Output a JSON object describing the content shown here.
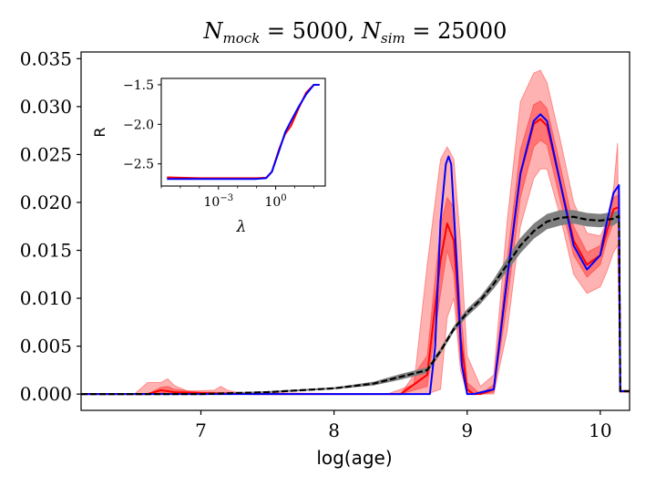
{
  "chart_data": {
    "type": "line",
    "title": "N_mock = 5000, N_sim = 25000",
    "title_parts": {
      "n": "N",
      "mock": "mock",
      "eq1": " = 5000, ",
      "sim": "sim",
      "eq2": " = 25000"
    },
    "xlabel": "log(age)",
    "ylabel": "",
    "xlim": [
      6.1,
      10.22
    ],
    "ylim": [
      -0.0017,
      0.0357
    ],
    "x_ticks": [
      7,
      8,
      9,
      10
    ],
    "x_tick_labels": [
      "7",
      "8",
      "9",
      "10"
    ],
    "y_ticks": [
      0.0,
      0.005,
      0.01,
      0.015,
      0.02,
      0.025,
      0.03,
      0.035
    ],
    "y_tick_labels": [
      "0.000",
      "0.005",
      "0.010",
      "0.015",
      "0.020",
      "0.025",
      "0.030",
      "0.035"
    ],
    "colors": {
      "red": "#ff0000",
      "band": "#ff0000",
      "blue": "#0000ff",
      "gray": "#808080",
      "black": "#000000"
    },
    "series": [
      {
        "name": "red-median",
        "color": "#ff0000",
        "x": [
          6.1,
          6.6,
          6.7,
          6.8,
          7.0,
          7.4,
          8.0,
          8.5,
          8.7,
          8.8,
          8.85,
          8.9,
          8.95,
          9.0,
          9.05,
          9.1,
          9.2,
          9.3,
          9.4,
          9.5,
          9.55,
          9.6,
          9.7,
          9.8,
          9.9,
          10.0,
          10.05,
          10.1,
          10.14,
          10.15,
          10.22
        ],
        "values": [
          0,
          0,
          0.0004,
          0.0002,
          0.0001,
          0,
          0,
          0,
          0.002,
          0.014,
          0.0178,
          0.016,
          0.006,
          0.0005,
          0,
          0,
          0.0005,
          0.012,
          0.023,
          0.0282,
          0.0287,
          0.028,
          0.022,
          0.016,
          0.0135,
          0.0145,
          0.017,
          0.0193,
          0.0195,
          0.0003,
          0.0003
        ]
      },
      {
        "name": "blue-truth",
        "color": "#0000ff",
        "x": [
          6.1,
          8.72,
          8.76,
          8.8,
          8.84,
          8.86,
          8.88,
          8.92,
          8.96,
          9.0,
          9.05,
          9.2,
          9.3,
          9.4,
          9.5,
          9.55,
          9.6,
          9.7,
          9.8,
          9.9,
          10.0,
          10.05,
          10.1,
          10.14,
          10.15,
          10.22
        ],
        "values": [
          0,
          0,
          0.005,
          0.018,
          0.024,
          0.0248,
          0.024,
          0.014,
          0.003,
          0,
          0,
          0.0005,
          0.012,
          0.023,
          0.0285,
          0.0292,
          0.0285,
          0.022,
          0.0155,
          0.013,
          0.0145,
          0.018,
          0.021,
          0.0218,
          0.0003,
          0.0003
        ]
      },
      {
        "name": "black-dashed",
        "color": "#000000",
        "x": [
          6.1,
          7.0,
          7.5,
          8.0,
          8.3,
          8.5,
          8.7,
          8.8,
          8.9,
          9.0,
          9.1,
          9.2,
          9.3,
          9.4,
          9.5,
          9.6,
          9.7,
          9.8,
          9.9,
          10.0,
          10.1,
          10.14,
          10.15,
          10.22
        ],
        "values": [
          0,
          0,
          0.0002,
          0.0006,
          0.0011,
          0.0018,
          0.0025,
          0.0045,
          0.0068,
          0.0085,
          0.0098,
          0.0115,
          0.0135,
          0.0155,
          0.017,
          0.018,
          0.0184,
          0.0185,
          0.0182,
          0.0181,
          0.0183,
          0.0186,
          0.0003,
          0.0003
        ]
      }
    ],
    "bands": [
      {
        "name": "red-outer-band",
        "opacity": 0.3,
        "x": [
          6.1,
          6.5,
          6.6,
          6.7,
          6.75,
          6.8,
          6.9,
          7.1,
          7.15,
          7.2,
          7.3,
          8.4,
          8.6,
          8.7,
          8.8,
          8.85,
          8.9,
          8.95,
          9.0,
          9.1,
          9.2,
          9.3,
          9.4,
          9.5,
          9.55,
          9.6,
          9.7,
          9.8,
          9.9,
          10.0,
          10.05,
          10.1,
          10.13,
          10.15,
          10.22
        ],
        "upper": [
          0,
          0,
          0.0012,
          0.0012,
          0.0016,
          0.0009,
          0.0003,
          0.0004,
          0.0008,
          0.0004,
          0.0001,
          0,
          0.001,
          0.0135,
          0.0245,
          0.0258,
          0.0245,
          0.016,
          0.004,
          0.0008,
          0.002,
          0.018,
          0.0305,
          0.0335,
          0.0338,
          0.0325,
          0.0265,
          0.02,
          0.0168,
          0.0165,
          0.018,
          0.0215,
          0.0262,
          0.0004,
          0.0004
        ],
        "lower": [
          0,
          0,
          0,
          0,
          0,
          0,
          0,
          0,
          0,
          0,
          0,
          0,
          0,
          0,
          0.0005,
          0.008,
          0.01,
          0.0025,
          0,
          0,
          0,
          0.0065,
          0.0175,
          0.0225,
          0.0235,
          0.0235,
          0.0185,
          0.0125,
          0.0105,
          0.0112,
          0.0128,
          0.0148,
          0.0155,
          0.0002,
          0.0002
        ]
      },
      {
        "name": "red-inner-band",
        "opacity": 0.35,
        "x": [
          6.1,
          6.6,
          6.7,
          6.75,
          6.8,
          7.0,
          8.5,
          8.7,
          8.8,
          8.85,
          8.9,
          8.95,
          9.0,
          9.1,
          9.2,
          9.3,
          9.4,
          9.5,
          9.55,
          9.6,
          9.7,
          9.8,
          9.9,
          10.0,
          10.05,
          10.1,
          10.14,
          10.15,
          10.22
        ],
        "upper": [
          0,
          0,
          0.0007,
          0.0008,
          0.0005,
          0.0002,
          0,
          0.004,
          0.0175,
          0.0205,
          0.0195,
          0.009,
          0.0012,
          0,
          0.001,
          0.014,
          0.0255,
          0.0302,
          0.0306,
          0.0298,
          0.0238,
          0.0175,
          0.0148,
          0.0155,
          0.018,
          0.0205,
          0.0208,
          0.0003,
          0.0003
        ],
        "lower": [
          0,
          0,
          0.0001,
          0.0002,
          0,
          0,
          0,
          0.0008,
          0.0105,
          0.015,
          0.0125,
          0.0035,
          0,
          0,
          0.0002,
          0.0095,
          0.0205,
          0.0258,
          0.0265,
          0.026,
          0.0202,
          0.0145,
          0.0122,
          0.0135,
          0.016,
          0.018,
          0.0182,
          0.0002,
          0.0002
        ]
      },
      {
        "name": "gray-band",
        "opacity": 1.0,
        "x": [
          6.1,
          7.0,
          7.5,
          8.0,
          8.3,
          8.5,
          8.7,
          8.8,
          8.9,
          9.0,
          9.1,
          9.2,
          9.3,
          9.4,
          9.5,
          9.6,
          9.7,
          9.8,
          9.9,
          10.0,
          10.1,
          10.14,
          10.15,
          10.22
        ],
        "upper": [
          0.0001,
          0.0001,
          0.0003,
          0.0007,
          0.0013,
          0.0021,
          0.0028,
          0.0048,
          0.0071,
          0.0089,
          0.0102,
          0.012,
          0.0142,
          0.0163,
          0.0178,
          0.0188,
          0.0192,
          0.0192,
          0.0189,
          0.0188,
          0.019,
          0.0192,
          0.0004,
          0.0004
        ],
        "lower": [
          0,
          0,
          0.0001,
          0.0005,
          0.0009,
          0.0015,
          0.0022,
          0.0042,
          0.0065,
          0.0081,
          0.0094,
          0.011,
          0.0128,
          0.0147,
          0.0162,
          0.0172,
          0.0176,
          0.0178,
          0.0175,
          0.0174,
          0.0176,
          0.018,
          0.0002,
          0.0002
        ]
      }
    ],
    "inset": {
      "type": "line",
      "title": "",
      "xlabel": "λ",
      "ylabel": "R",
      "xscale": "log",
      "xlim_log10": [
        -6.0,
        2.6
      ],
      "ylim": [
        -2.78,
        -1.42
      ],
      "x_ticks_log10": [
        -3,
        0
      ],
      "x_tick_labels": [
        {
          "base": "10",
          "exp": "−3"
        },
        {
          "base": "10",
          "exp": "0"
        }
      ],
      "y_ticks": [
        -1.5,
        -2.0,
        -2.5
      ],
      "y_tick_labels": [
        "−1.5",
        "−2.0",
        "−2.5"
      ],
      "series": [
        {
          "name": "inset-red",
          "color": "#ff0000",
          "x_log10": [
            -5.7,
            -5.0,
            -4.0,
            -3.0,
            -2.0,
            -1.0,
            -0.5,
            -0.2,
            0.2,
            0.5,
            0.8,
            1.2,
            1.6,
            2.0,
            2.3
          ],
          "values": [
            -2.67,
            -2.675,
            -2.68,
            -2.68,
            -2.68,
            -2.68,
            -2.675,
            -2.6,
            -2.3,
            -2.12,
            -2.02,
            -1.8,
            -1.6,
            -1.5,
            -1.5
          ]
        },
        {
          "name": "inset-blue",
          "color": "#0000ff",
          "x_log10": [
            -5.7,
            -5.0,
            -4.0,
            -3.0,
            -2.0,
            -1.0,
            -0.5,
            -0.2,
            0.2,
            0.5,
            0.8,
            1.2,
            1.6,
            2.0,
            2.3
          ],
          "values": [
            -2.69,
            -2.69,
            -2.69,
            -2.69,
            -2.69,
            -2.69,
            -2.68,
            -2.6,
            -2.32,
            -2.1,
            -1.96,
            -1.78,
            -1.62,
            -1.5,
            -1.5
          ]
        }
      ]
    }
  }
}
